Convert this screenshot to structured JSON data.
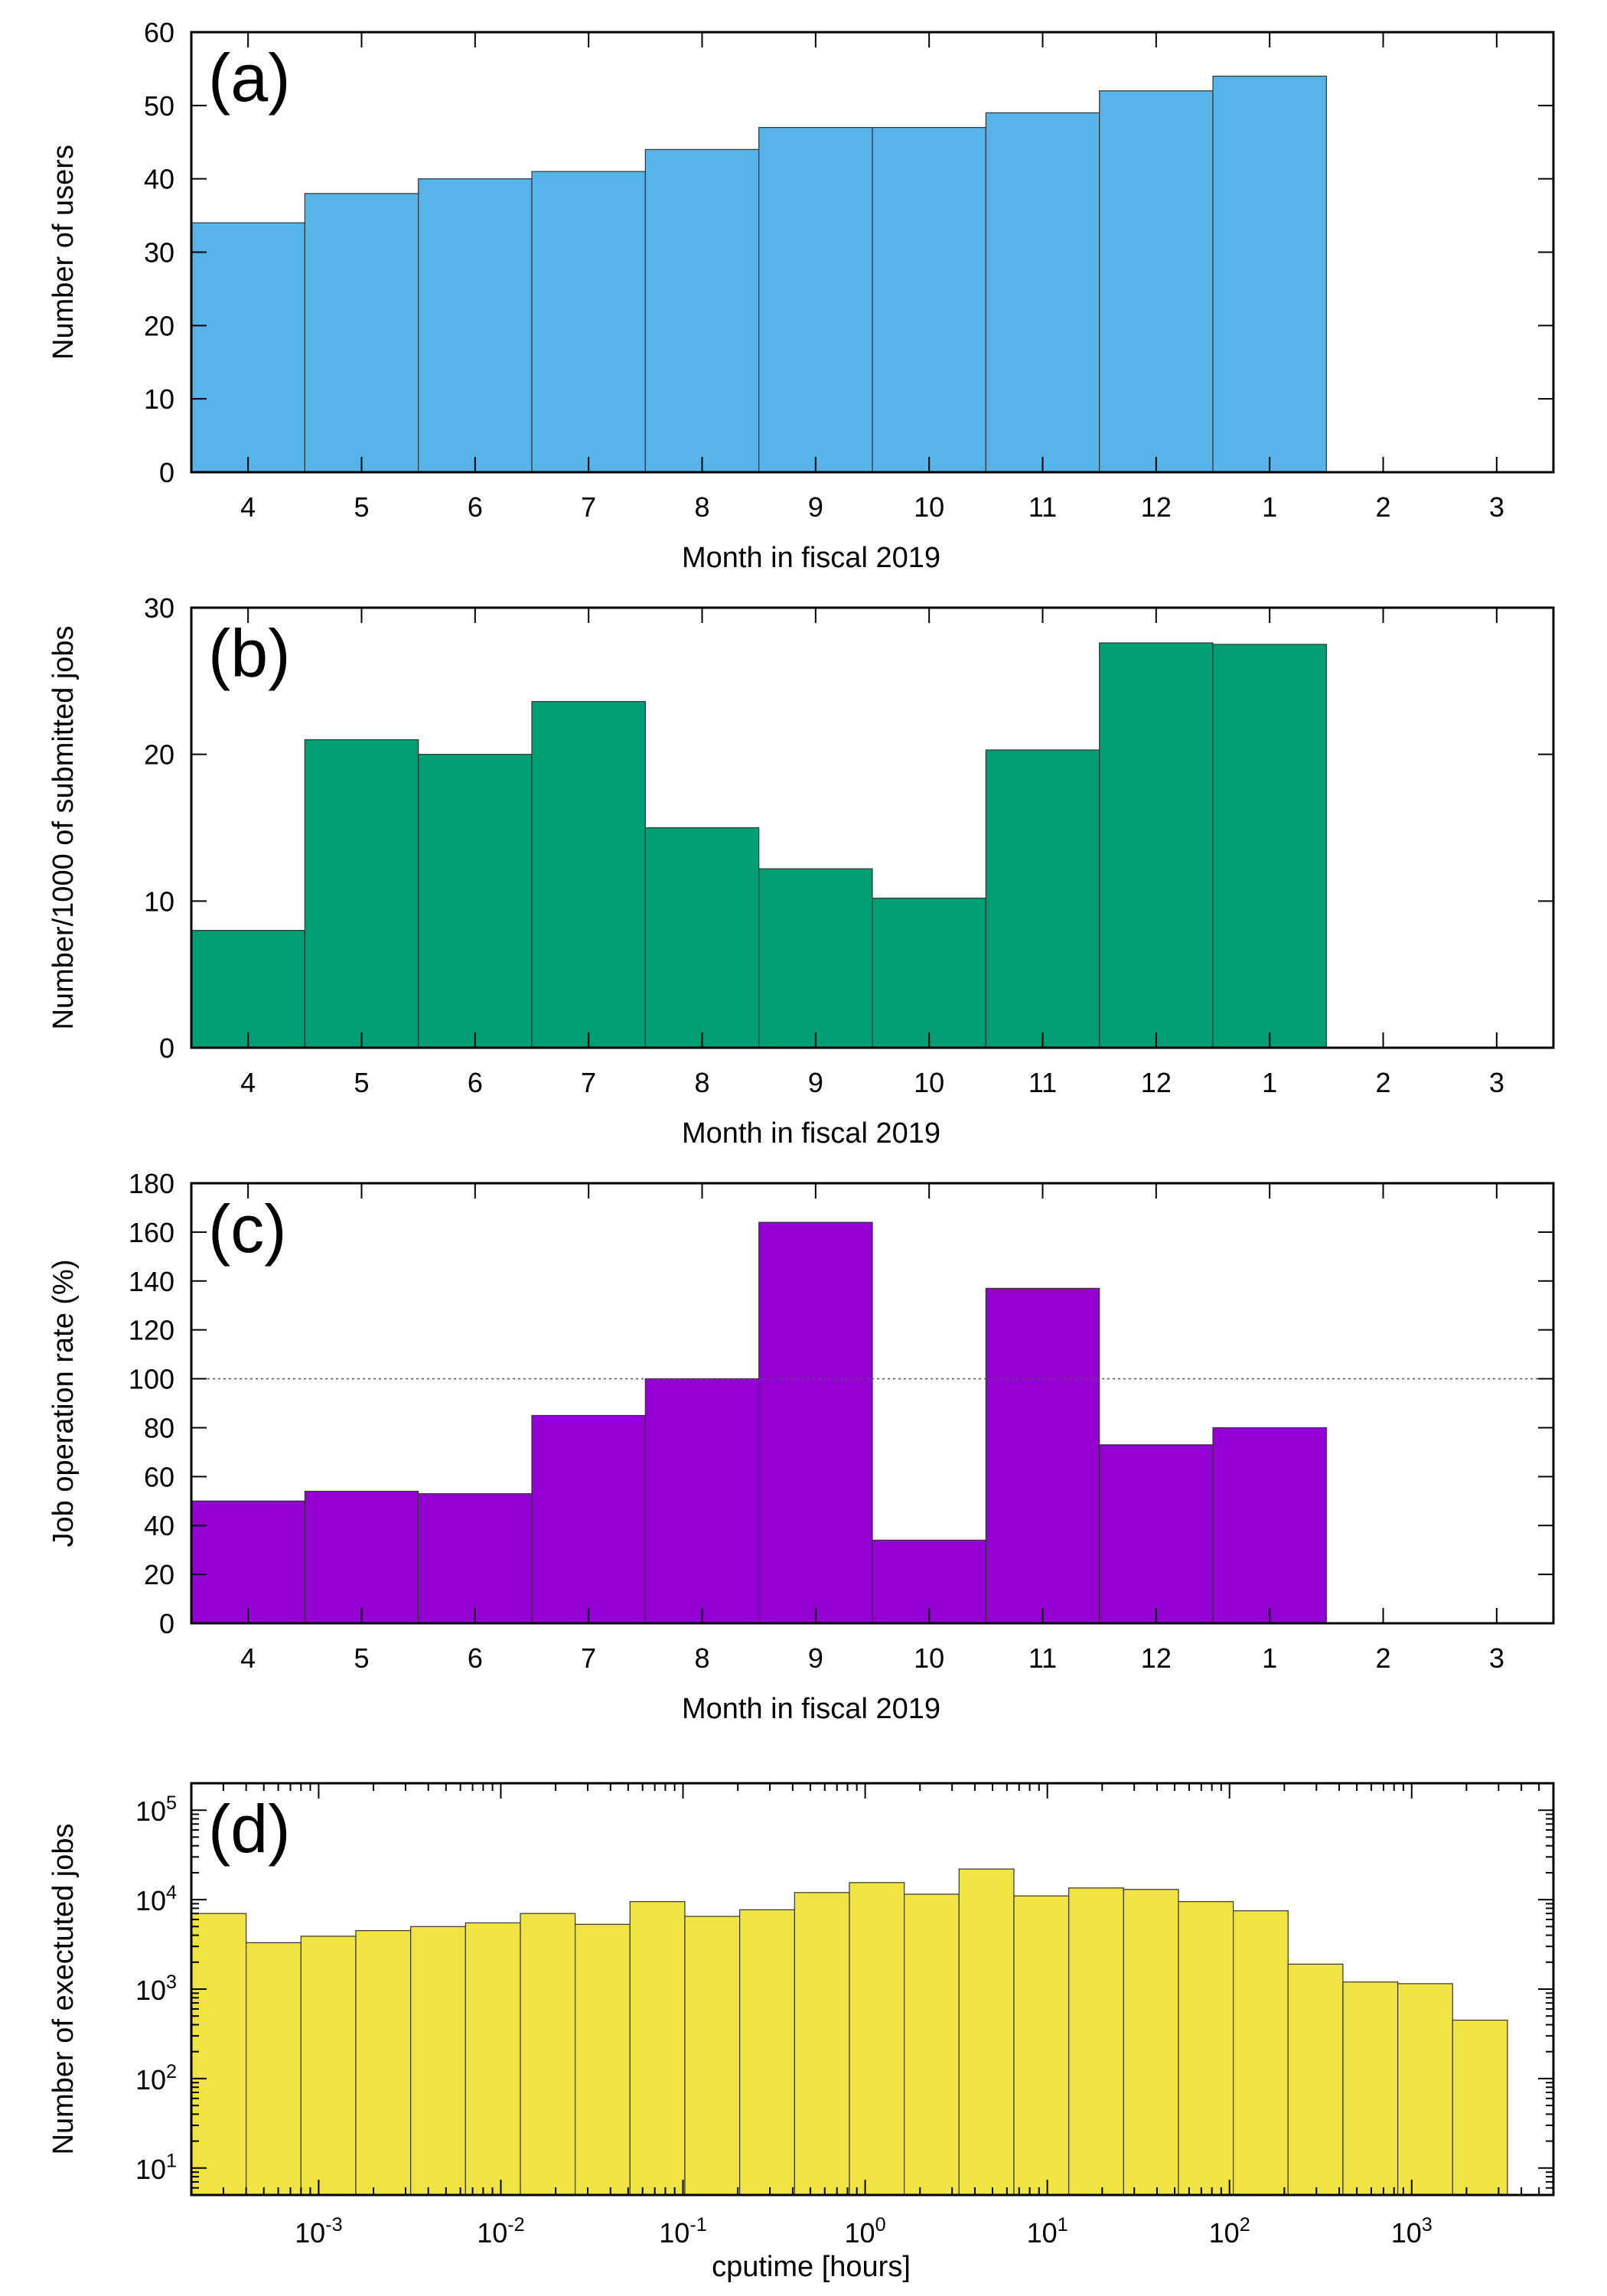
{
  "chart_data": [
    {
      "type": "bar",
      "panel_label": "(a)",
      "xlabel": "Month in fiscal 2019",
      "ylabel": "Number of users",
      "categories": [
        "4",
        "5",
        "6",
        "7",
        "8",
        "9",
        "10",
        "11",
        "12",
        "1",
        "2",
        "3"
      ],
      "values": [
        34,
        38,
        40,
        41,
        44,
        47,
        47,
        49,
        52,
        54,
        null,
        null
      ],
      "ylim": [
        0,
        60
      ],
      "yticks": [
        "0",
        "10",
        "20",
        "30",
        "40",
        "50",
        "60"
      ],
      "color": "#56b4e9",
      "grid": false
    },
    {
      "type": "bar",
      "panel_label": "(b)",
      "xlabel": "Month in fiscal 2019",
      "ylabel": "Number/1000 of submitted jobs",
      "categories": [
        "4",
        "5",
        "6",
        "7",
        "8",
        "9",
        "10",
        "11",
        "12",
        "1",
        "2",
        "3"
      ],
      "values": [
        8.0,
        21.0,
        20.0,
        23.6,
        15.0,
        12.2,
        10.2,
        20.3,
        27.6,
        27.5,
        null,
        null
      ],
      "ylim": [
        0,
        30
      ],
      "yticks": [
        "0",
        "10",
        "20",
        "30"
      ],
      "color": "#009e73",
      "grid": false
    },
    {
      "type": "bar",
      "panel_label": "(c)",
      "xlabel": "Month in fiscal 2019",
      "ylabel": "Job operation rate (%)",
      "categories": [
        "4",
        "5",
        "6",
        "7",
        "8",
        "9",
        "10",
        "11",
        "12",
        "1",
        "2",
        "3"
      ],
      "values": [
        50,
        54,
        53,
        85,
        100,
        164,
        34,
        137,
        73,
        80,
        null,
        null
      ],
      "ylim": [
        0,
        180
      ],
      "yticks": [
        "0",
        "20",
        "40",
        "60",
        "80",
        "100",
        "120",
        "140",
        "160",
        "180"
      ],
      "reference_line": 100,
      "color": "#9400d3",
      "grid": false
    },
    {
      "type": "bar",
      "panel_label": "(d)",
      "xlabel": "cputime [hours]",
      "ylabel": "Number of exectuted jobs",
      "x_scale": "log",
      "y_scale": "log",
      "xlim": [
        0.0002,
        6000
      ],
      "ylim": [
        5,
        200000
      ],
      "xticks": [
        {
          "base": "10",
          "exp": "-3",
          "value": 0.001
        },
        {
          "base": "10",
          "exp": "-2",
          "value": 0.01
        },
        {
          "base": "10",
          "exp": "-1",
          "value": 0.1
        },
        {
          "base": "10",
          "exp": "0",
          "value": 1
        },
        {
          "base": "10",
          "exp": "1",
          "value": 10
        },
        {
          "base": "10",
          "exp": "2",
          "value": 100
        },
        {
          "base": "10",
          "exp": "3",
          "value": 1000
        }
      ],
      "yticks": [
        {
          "base": "10",
          "exp": "1",
          "value": 10
        },
        {
          "base": "10",
          "exp": "2",
          "value": 100
        },
        {
          "base": "10",
          "exp": "3",
          "value": 1000
        },
        {
          "base": "10",
          "exp": "4",
          "value": 10000
        },
        {
          "base": "10",
          "exp": "5",
          "value": 100000
        }
      ],
      "bins": [
        {
          "x0": 0.0002,
          "x1": 0.0004,
          "value": 7000
        },
        {
          "x0": 0.0004,
          "x1": 0.0008,
          "value": 3300
        },
        {
          "x0": 0.0008,
          "x1": 0.0016,
          "value": 3900
        },
        {
          "x0": 0.0016,
          "x1": 0.0032,
          "value": 4500
        },
        {
          "x0": 0.0032,
          "x1": 0.0064,
          "value": 5000
        },
        {
          "x0": 0.0064,
          "x1": 0.0128,
          "value": 5500
        },
        {
          "x0": 0.0128,
          "x1": 0.0256,
          "value": 7000
        },
        {
          "x0": 0.0256,
          "x1": 0.0512,
          "value": 5300
        },
        {
          "x0": 0.0512,
          "x1": 0.1024,
          "value": 9500
        },
        {
          "x0": 0.1024,
          "x1": 0.2048,
          "value": 6500
        },
        {
          "x0": 0.2048,
          "x1": 0.4096,
          "value": 7700
        },
        {
          "x0": 0.4096,
          "x1": 0.8192,
          "value": 12000
        },
        {
          "x0": 0.8192,
          "x1": 1.6384,
          "value": 15500
        },
        {
          "x0": 1.6384,
          "x1": 3.2768,
          "value": 11500
        },
        {
          "x0": 3.2768,
          "x1": 6.5536,
          "value": 22000
        },
        {
          "x0": 6.5536,
          "x1": 13.1072,
          "value": 11000
        },
        {
          "x0": 13.1072,
          "x1": 26.2144,
          "value": 13500
        },
        {
          "x0": 26.2144,
          "x1": 52.4288,
          "value": 13000
        },
        {
          "x0": 52.4288,
          "x1": 104.8576,
          "value": 9500
        },
        {
          "x0": 104.8576,
          "x1": 209.7152,
          "value": 7500
        },
        {
          "x0": 209.7152,
          "x1": 419.4304,
          "value": 1900
        },
        {
          "x0": 419.4304,
          "x1": 838.8608,
          "value": 1200
        },
        {
          "x0": 838.8608,
          "x1": 1677.7216,
          "value": 1150
        },
        {
          "x0": 1677.7216,
          "x1": 3355.4432,
          "value": 450
        }
      ],
      "color": "#f0e442",
      "grid": false
    }
  ]
}
